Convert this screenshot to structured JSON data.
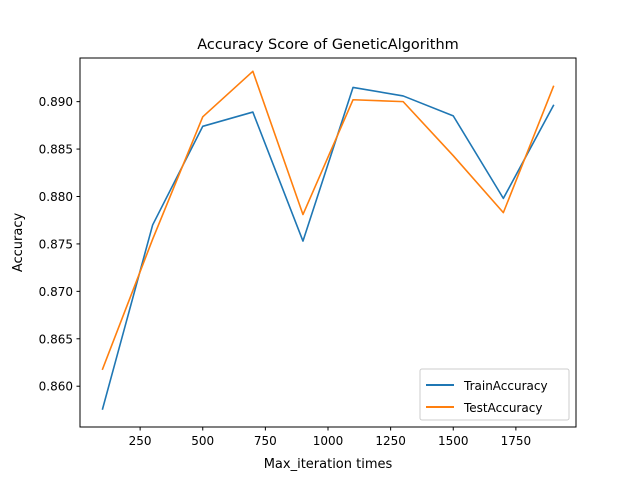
{
  "chart_data": {
    "type": "line",
    "title": "Accuracy Score of GeneticAlgorithm",
    "xlabel": "Max_iteration times",
    "ylabel": "Accuracy",
    "x": [
      100,
      300,
      500,
      700,
      900,
      1100,
      1300,
      1500,
      1700,
      1900
    ],
    "xlim": [
      10,
      1990
    ],
    "ylim": [
      0.8557,
      0.8946
    ],
    "xticks": [
      250,
      500,
      750,
      1000,
      1250,
      1500,
      1750
    ],
    "xtick_labels": [
      "250",
      "500",
      "750",
      "1000",
      "1250",
      "1500",
      "1750"
    ],
    "yticks": [
      0.86,
      0.865,
      0.87,
      0.875,
      0.88,
      0.885,
      0.89
    ],
    "ytick_labels": [
      "0.860",
      "0.865",
      "0.870",
      "0.875",
      "0.880",
      "0.885",
      "0.890"
    ],
    "grid": false,
    "legend_position": "lower right",
    "series": [
      {
        "name": "TrainAccuracy",
        "color": "#1f77b4",
        "values": [
          0.8576,
          0.877,
          0.8874,
          0.8889,
          0.8753,
          0.8915,
          0.8906,
          0.8885,
          0.8798,
          0.8896
        ]
      },
      {
        "name": "TestAccuracy",
        "color": "#ff7f0e",
        "values": [
          0.8618,
          0.8755,
          0.8884,
          0.8932,
          0.8781,
          0.8902,
          0.89,
          0.8843,
          0.8783,
          0.8916
        ]
      }
    ]
  }
}
